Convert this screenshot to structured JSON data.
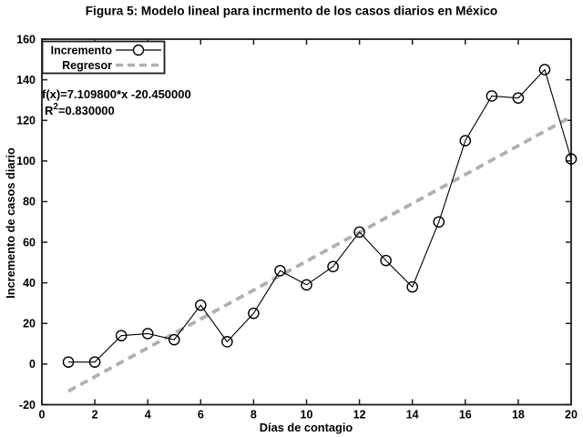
{
  "figure": {
    "title": "Figura 5: Modelo lineal para incrmento de los casos diarios en México"
  },
  "annotation": {
    "equation": "f(x)=7.109800*x -20.450000",
    "r2_base": "R",
    "r2_sup": "2",
    "r2_rest": "=0.830000"
  },
  "chart_data": {
    "type": "line",
    "title": "Figura 5: Modelo lineal para incrmento de los casos diarios en México",
    "xlabel": "Días de contagio",
    "ylabel": "Incremento de casos diario",
    "xlim": [
      0,
      20
    ],
    "ylim": [
      -20,
      160
    ],
    "xticks": [
      0,
      2,
      4,
      6,
      8,
      10,
      12,
      14,
      16,
      18,
      20
    ],
    "yticks": [
      -20,
      0,
      20,
      40,
      60,
      80,
      100,
      120,
      140,
      160
    ],
    "grid": false,
    "legend_position": "upper-left-inside",
    "series": [
      {
        "name": "Incremento",
        "type": "line",
        "marker": "open-circle",
        "color": "#000000",
        "x": [
          1,
          2,
          3,
          4,
          5,
          6,
          7,
          8,
          9,
          10,
          11,
          12,
          13,
          14,
          15,
          16,
          17,
          18,
          19,
          20
        ],
        "y": [
          1,
          1,
          14,
          15,
          12,
          29,
          11,
          25,
          46,
          39,
          48,
          65,
          51,
          38,
          70,
          110,
          132,
          131,
          145,
          101
        ]
      },
      {
        "name": "Regresor",
        "type": "line",
        "style": "dashed",
        "color": "#b0b0b0",
        "slope": 7.1098,
        "intercept": -20.45,
        "r_squared": 0.83,
        "x_range": [
          1,
          20
        ]
      }
    ]
  },
  "colors": {
    "background": "#ffffff",
    "axis": "#1c1c1c",
    "data_line": "#000000",
    "regressor": "#b0b0b0"
  }
}
